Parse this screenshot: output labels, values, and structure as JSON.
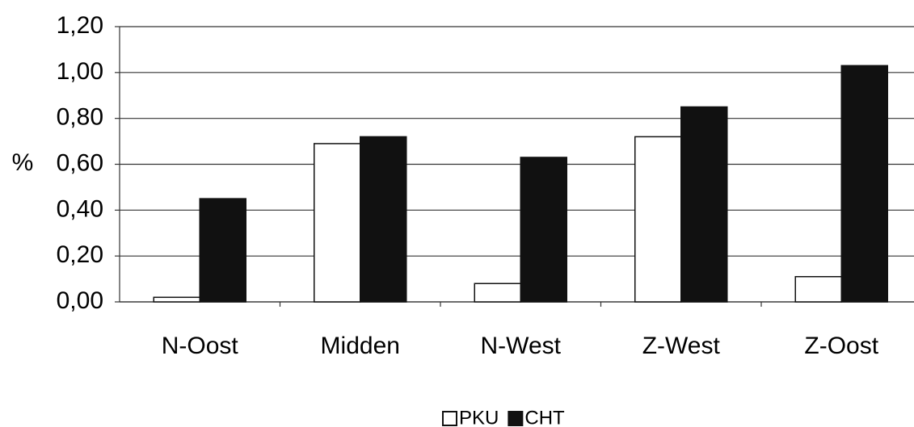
{
  "chart_data": {
    "type": "bar",
    "y_label": "%",
    "categories": [
      "N-Oost",
      "Midden",
      "N-West",
      "Z-West",
      "Z-Oost"
    ],
    "series": [
      {
        "name": "PKU",
        "color": "#ffffff",
        "values": [
          0.02,
          0.69,
          0.08,
          0.72,
          0.11
        ]
      },
      {
        "name": "CHT",
        "color": "#111111",
        "values": [
          0.45,
          0.72,
          0.63,
          0.85,
          1.03
        ]
      }
    ],
    "ylim": [
      0,
      1.2
    ],
    "yticks": [
      {
        "value": 0,
        "label": "0,00"
      },
      {
        "value": 0.2,
        "label": "0,20"
      },
      {
        "value": 0.4,
        "label": "0,40"
      },
      {
        "value": 0.6,
        "label": "0,60"
      },
      {
        "value": 0.8,
        "label": "0,80"
      },
      {
        "value": 1.0,
        "label": "1,00"
      },
      {
        "value": 1.2,
        "label": "1,20"
      }
    ],
    "grid": true,
    "legend": "bottom"
  }
}
